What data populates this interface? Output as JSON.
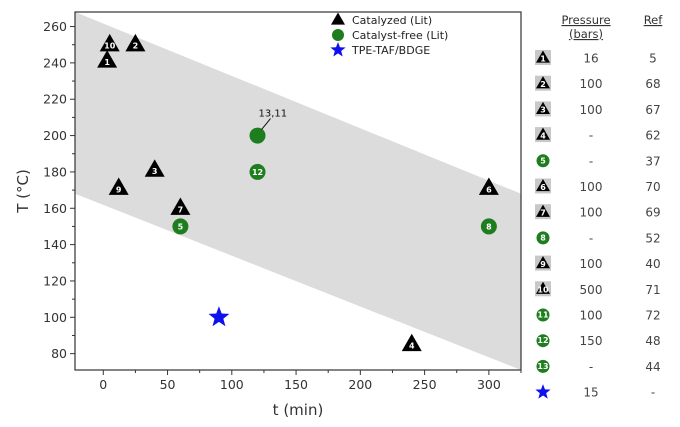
{
  "chart_data": {
    "type": "scatter",
    "xlabel": "t (min)",
    "ylabel": "T (°C)",
    "xlim": [
      -22,
      325
    ],
    "ylim": [
      71,
      268
    ],
    "xticks": [
      0,
      50,
      100,
      150,
      200,
      250,
      300
    ],
    "yticks": [
      80,
      100,
      120,
      140,
      160,
      180,
      200,
      220,
      240,
      260
    ],
    "grid": false,
    "shaded_band": {
      "upper": [
        [
          -22,
          268
        ],
        [
          325,
          168
        ]
      ],
      "lower": [
        [
          -22,
          168
        ],
        [
          325,
          71
        ]
      ]
    },
    "legend": {
      "placement": "top-center",
      "entries": [
        {
          "label": "Catalyzed (Lit)",
          "marker": "triangle",
          "color": "#000000"
        },
        {
          "label": "Catalyst-free (Lit)",
          "marker": "circle",
          "color": "#1e7d1e"
        },
        {
          "label": "TPE-TAF/BDGE",
          "marker": "star",
          "color": "#1010ee"
        }
      ]
    },
    "series": [
      {
        "name": "Catalyzed (Lit)",
        "marker": "triangle",
        "color": "#000000",
        "points": [
          {
            "label": "1",
            "x": 3,
            "y": 241
          },
          {
            "label": "2",
            "x": 25,
            "y": 250
          },
          {
            "label": "3",
            "x": 40,
            "y": 181
          },
          {
            "label": "4",
            "x": 240,
            "y": 85
          },
          {
            "label": "6",
            "x": 300,
            "y": 171
          },
          {
            "label": "7",
            "x": 60,
            "y": 160
          },
          {
            "label": "9",
            "x": 12,
            "y": 171
          },
          {
            "label": "10",
            "x": 5,
            "y": 250
          }
        ]
      },
      {
        "name": "Catalyst-free (Lit)",
        "marker": "circle",
        "color": "#1e7d1e",
        "points": [
          {
            "label": "5",
            "x": 60,
            "y": 150
          },
          {
            "label": "8",
            "x": 300,
            "y": 150
          },
          {
            "label": "12",
            "x": 120,
            "y": 180
          }
        ]
      },
      {
        "name": "TPE-TAF/BDGE",
        "marker": "star",
        "color": "#1010ee",
        "points": [
          {
            "label": "",
            "x": 90,
            "y": 100
          }
        ]
      }
    ],
    "annotations": [
      {
        "text": "13,11",
        "x": 120,
        "y": 200,
        "marker": "circle",
        "color": "#1e7d1e"
      }
    ]
  },
  "table": {
    "headers": {
      "pressure": "Pressure",
      "unit": "(bars)",
      "ref": "Ref"
    },
    "rows": [
      {
        "label": "1",
        "marker": "triangle",
        "pressure": "16",
        "ref": "5"
      },
      {
        "label": "2",
        "marker": "triangle",
        "pressure": "100",
        "ref": "68"
      },
      {
        "label": "3",
        "marker": "triangle",
        "pressure": "100",
        "ref": "67"
      },
      {
        "label": "4",
        "marker": "triangle",
        "pressure": "-",
        "ref": "62"
      },
      {
        "label": "5",
        "marker": "circle",
        "pressure": "-",
        "ref": "37"
      },
      {
        "label": "6",
        "marker": "triangle",
        "pressure": "100",
        "ref": "70"
      },
      {
        "label": "7",
        "marker": "triangle",
        "pressure": "100",
        "ref": "69"
      },
      {
        "label": "8",
        "marker": "circle",
        "pressure": "-",
        "ref": "52"
      },
      {
        "label": "9",
        "marker": "triangle",
        "pressure": "100",
        "ref": "40"
      },
      {
        "label": "10",
        "marker": "triangle",
        "pressure": "500",
        "ref": "71"
      },
      {
        "label": "11",
        "marker": "circle",
        "pressure": "100",
        "ref": "72"
      },
      {
        "label": "12",
        "marker": "circle",
        "pressure": "150",
        "ref": "48"
      },
      {
        "label": "13",
        "marker": "circle",
        "pressure": "-",
        "ref": "44"
      },
      {
        "label": "",
        "marker": "star",
        "pressure": "15",
        "ref": "-"
      }
    ]
  }
}
